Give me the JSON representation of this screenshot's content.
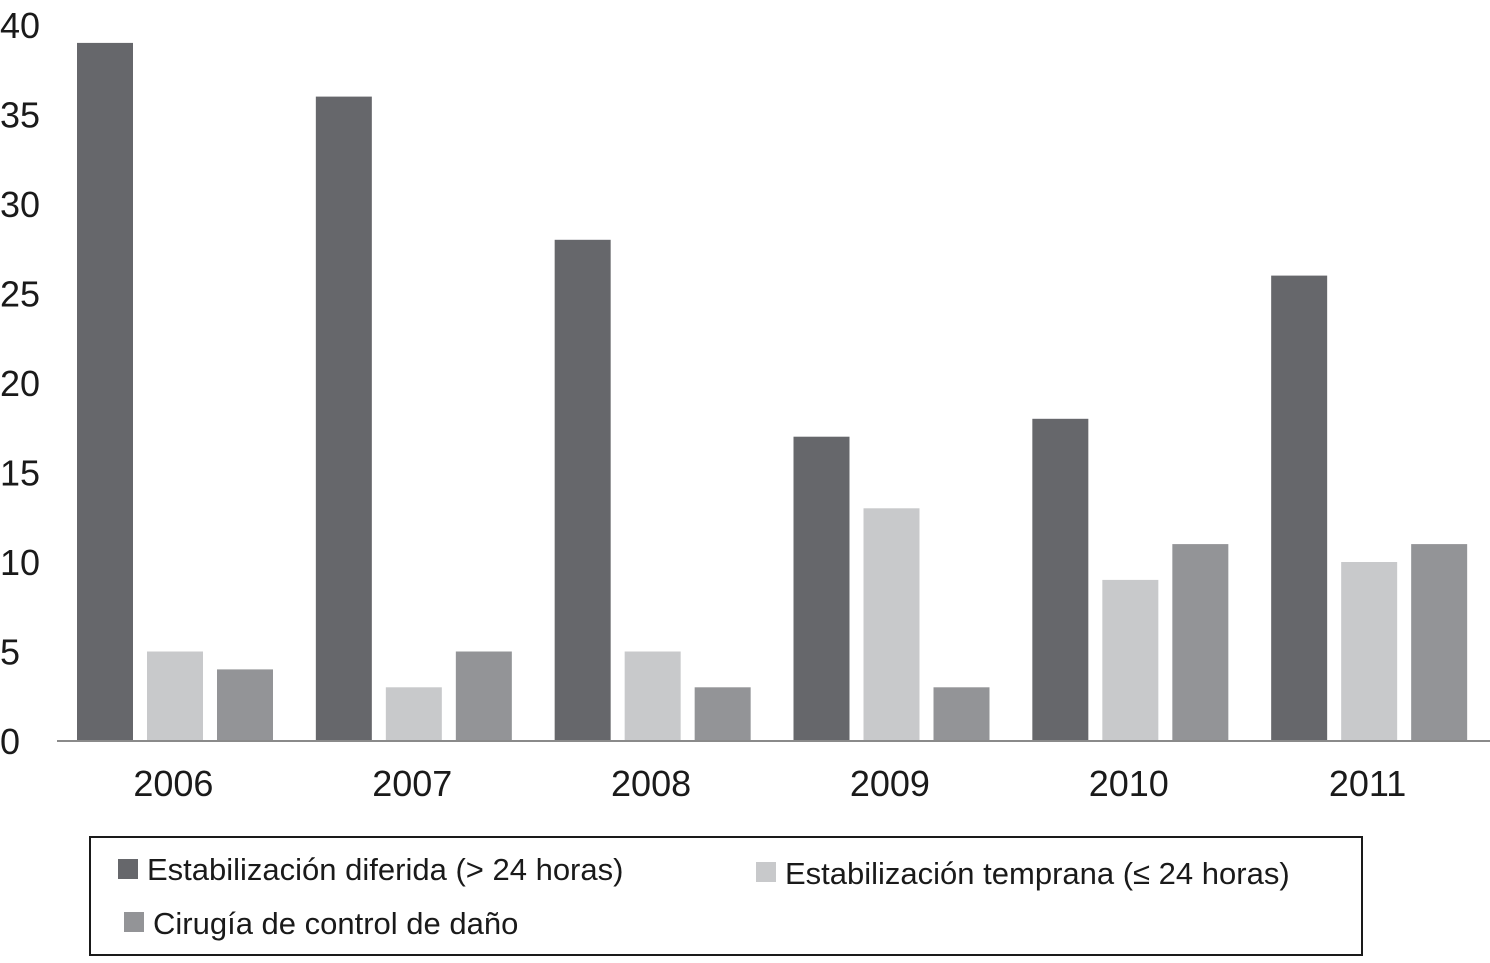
{
  "chart_data": {
    "type": "bar",
    "title": "",
    "xlabel": "",
    "ylabel": "",
    "categories": [
      "2006",
      "2007",
      "2008",
      "2009",
      "2010",
      "2011"
    ],
    "series": [
      {
        "name": "Estabilización diferida (> 24 horas)",
        "color": "#66676b",
        "values": [
          39,
          36,
          28,
          17,
          18,
          26
        ]
      },
      {
        "name": "Estabilización temprana (≤ 24 horas)",
        "color": "#c8c9cb",
        "values": [
          5,
          3,
          5,
          13,
          9,
          10
        ]
      },
      {
        "name": "Cirugía de control de daño",
        "color": "#939497",
        "values": [
          4,
          5,
          3,
          3,
          11,
          11
        ]
      }
    ],
    "ylim": [
      0,
      40
    ],
    "yticks": [
      "0",
      "5",
      "10",
      "15",
      "20",
      "25",
      "30",
      "35",
      "40"
    ],
    "grid": false,
    "legend_position": "bottom",
    "axis_color": "#8a8a8a"
  }
}
